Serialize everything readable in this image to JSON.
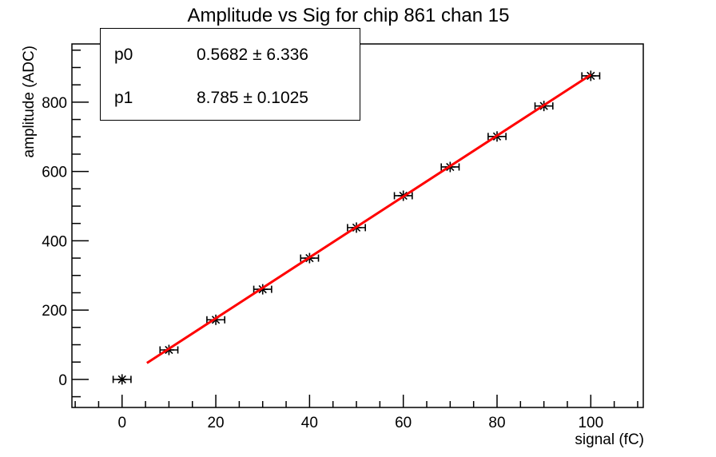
{
  "title": "Amplitude vs Sig for chip 861 chan 15",
  "stats_box": {
    "rows": [
      {
        "name": "p0",
        "value": "0.5682 ± 6.336"
      },
      {
        "name": "p1",
        "value": "8.785 ± 0.1025"
      }
    ]
  },
  "colors": {
    "background": "#ffffff",
    "axis": "#000000",
    "marker": "#000000",
    "fit_line": "#ff0000"
  },
  "chart_data": {
    "type": "scatter",
    "title": "Amplitude vs Sig for chip 861 chan 15",
    "xlabel": "signal (fC)",
    "ylabel": "amplitude (ADC)",
    "x": [
      0,
      10,
      20,
      30,
      40,
      50,
      60,
      70,
      80,
      90,
      100
    ],
    "y": [
      0,
      85,
      172,
      260,
      350,
      438,
      530,
      613,
      701,
      789,
      876
    ],
    "x_error": 1.9,
    "xlim": [
      -10.7,
      111.2
    ],
    "ylim": [
      -81,
      968
    ],
    "x_major_ticks": [
      0,
      20,
      40,
      60,
      80,
      100
    ],
    "x_minor_step": 5,
    "y_major_ticks": [
      0,
      200,
      400,
      600,
      800
    ],
    "y_minor_step": 50,
    "grid": false,
    "legend": null,
    "marker": "asterisk",
    "fit": {
      "type": "linear",
      "p0": 0.5682,
      "p0_err": 6.336,
      "p1": 8.785,
      "p1_err": 0.1025,
      "x_range": [
        5.3,
        100
      ],
      "color": "#ff0000"
    }
  }
}
